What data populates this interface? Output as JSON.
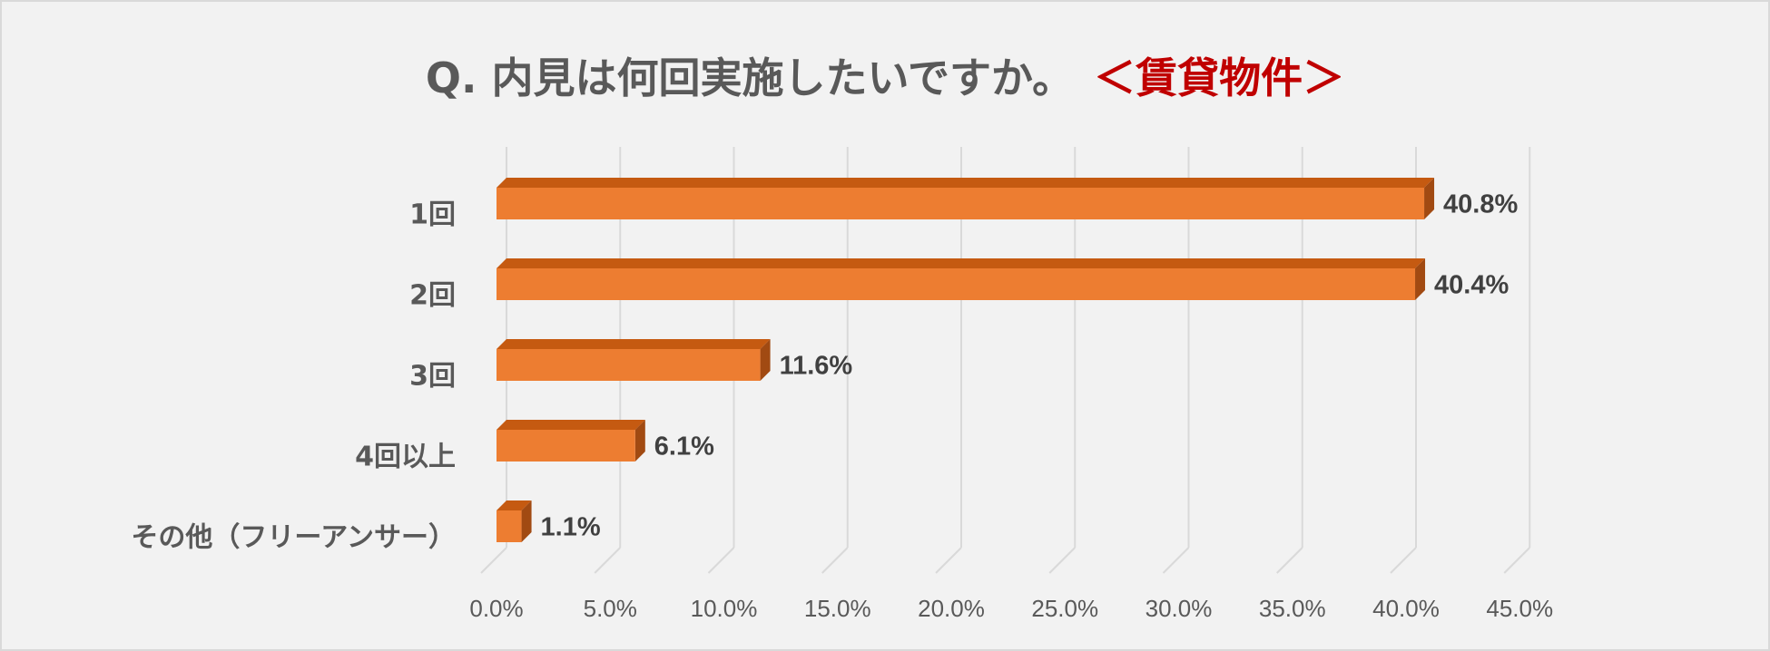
{
  "title": {
    "main": "Q. 内見は何回実施したいですか。",
    "accent": "＜賃貸物件＞"
  },
  "colors": {
    "bar_front": "#ed7d31",
    "bar_top": "#c55a11",
    "bar_side": "#a14a12",
    "title_accent": "#c00000",
    "grid": "#d9d9d9"
  },
  "chart_data": {
    "type": "bar",
    "orientation": "horizontal",
    "style": "3d",
    "categories": [
      "1回",
      "2回",
      "3回",
      "4回以上",
      "その他（フリーアンサー）"
    ],
    "values": [
      40.8,
      40.4,
      11.6,
      6.1,
      1.1
    ],
    "data_labels": [
      "40.8%",
      "40.4%",
      "11.6%",
      "6.1%",
      "1.1%"
    ],
    "xlim": [
      0,
      45
    ],
    "xticks": [
      "0.0%",
      "5.0%",
      "10.0%",
      "15.0%",
      "20.0%",
      "25.0%",
      "30.0%",
      "35.0%",
      "40.0%",
      "45.0%"
    ],
    "grid": true,
    "legend": "none"
  }
}
